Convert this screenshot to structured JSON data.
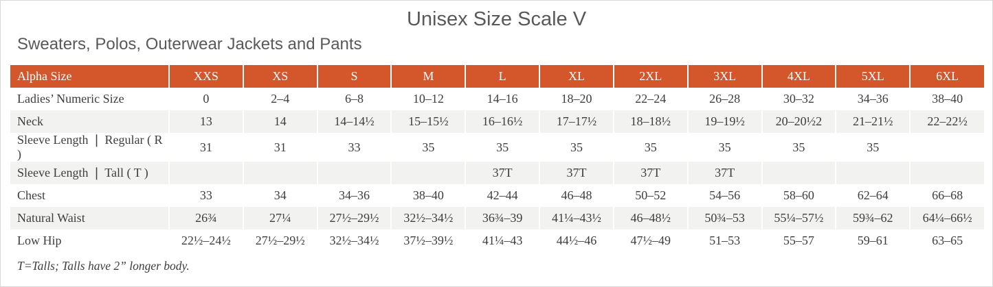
{
  "page": {
    "title": "Unisex Size Scale V",
    "subtitle": "Sweaters, Polos, Outerwear Jackets and Pants",
    "footnote": "T=Talls; Talls have 2” longer body."
  },
  "colors": {
    "header_bg": "#d4562b",
    "header_text": "#ffffff",
    "alt_row_bg": "#f2f2f1",
    "title_text": "#595959",
    "cell_text": "#3d3d3d"
  },
  "chart_data": {
    "type": "table",
    "columns": [
      "Alpha Size",
      "XXS",
      "XS",
      "S",
      "M",
      "L",
      "XL",
      "2XL",
      "3XL",
      "4XL",
      "5XL",
      "6XL"
    ],
    "rows": [
      {
        "label": "Ladies’ Numeric Size",
        "values": [
          "0",
          "2–4",
          "6–8",
          "10–12",
          "14–16",
          "18–20",
          "22–24",
          "26–28",
          "30–32",
          "34–36",
          "38–40"
        ]
      },
      {
        "label": "Neck",
        "values": [
          "13",
          "14",
          "14–14½",
          "15–15½",
          "16–16½",
          "17–17½",
          "18–18½",
          "19–19½",
          "20–20½2",
          "21–21½",
          "22–22½"
        ]
      },
      {
        "label": "Sleeve Length ❘ Regular ( R )",
        "values": [
          "31",
          "31",
          "33",
          "35",
          "35",
          "35",
          "35",
          "35",
          "35",
          "35",
          ""
        ]
      },
      {
        "label": "Sleeve Length ❘ Tall ( T )",
        "values": [
          "",
          "",
          "",
          "",
          "37T",
          "37T",
          "37T",
          "37T",
          "",
          "",
          ""
        ]
      },
      {
        "label": "Chest",
        "values": [
          "33",
          "34",
          "34–36",
          "38–40",
          "42–44",
          "46–48",
          "50–52",
          "54–56",
          "58–60",
          "62–64",
          "66–68"
        ]
      },
      {
        "label": "Natural Waist",
        "values": [
          "26¾",
          "27¼",
          "27½–29½",
          "32½–34½",
          "36¾–39",
          "41¼–43½",
          "46–48½",
          "50¾–53",
          "55¼–57½",
          "59¾–62",
          "64¼–66½"
        ]
      },
      {
        "label": "Low Hip",
        "values": [
          "22½–24½",
          "27½–29½",
          "32½–34½",
          "37½–39½",
          "41¼–43",
          "44½–46",
          "47½–49",
          "51–53",
          "55–57",
          "59–61",
          "63–65"
        ]
      }
    ]
  }
}
